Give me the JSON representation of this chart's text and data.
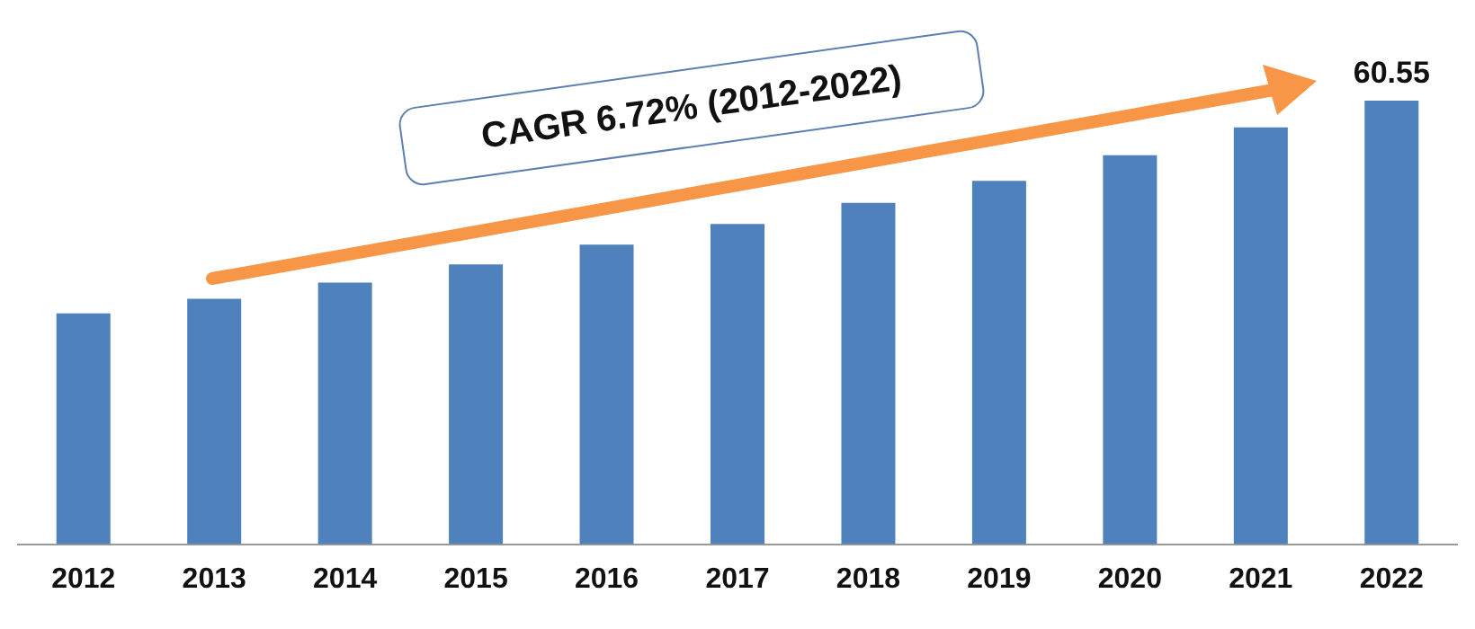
{
  "chart_data": {
    "type": "bar",
    "ylim": [
      0,
      60.55
    ],
    "tick_labels": "x",
    "categories": [
      "2012",
      "2013",
      "2014",
      "2015",
      "2016",
      "2017",
      "2018",
      "2019",
      "2020",
      "2021",
      "2022"
    ],
    "values": [
      31.5,
      33.5,
      35.7,
      38.2,
      40.9,
      43.7,
      46.6,
      49.6,
      53.1,
      56.9,
      60.55
    ],
    "value_labels": [
      null,
      null,
      null,
      null,
      null,
      null,
      null,
      null,
      null,
      null,
      "60.55"
    ],
    "color": "#4f81bd",
    "annotations": [
      "CAGR 6.72% (2012-2022)"
    ],
    "grid": false,
    "legend": false
  }
}
